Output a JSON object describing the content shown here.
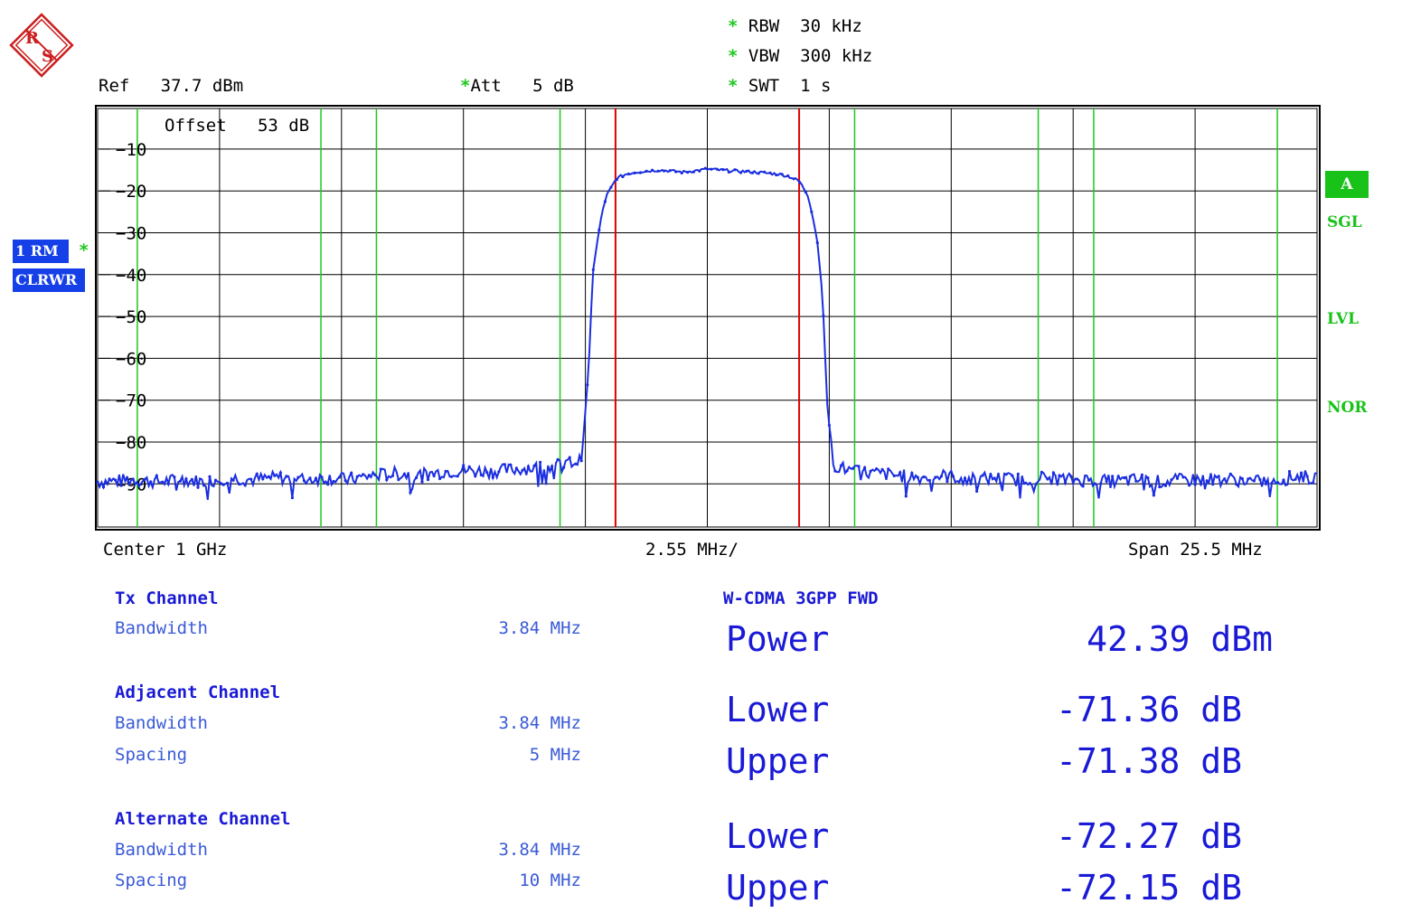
{
  "header": {
    "rbw_label": "RBW",
    "rbw_value": "30 kHz",
    "vbw_label": "VBW",
    "vbw_value": "300 kHz",
    "swt_label": "SWT",
    "swt_value": "1 s",
    "ref_label": "Ref",
    "ref_value": "37.7 dBm",
    "att_label": "Att",
    "att_value": "5 dB",
    "offset_label": "Offset",
    "offset_value": "53 dB",
    "star": "*"
  },
  "side_left": {
    "trace_tag": "1 RM",
    "mode_tag": "CLRWR"
  },
  "side_right": {
    "trace_box": "A",
    "sgl": "SGL",
    "lvl": "LVL",
    "nor": "NOR"
  },
  "footer_axis": {
    "center": "Center 1 GHz",
    "div": "2.55 MHz/",
    "span": "Span 25.5 MHz"
  },
  "tx_channel": {
    "title": "Tx Channel",
    "bw_label": "Bandwidth",
    "bw_value": "3.84 MHz"
  },
  "adjacent_channel": {
    "title": "Adjacent Channel",
    "bw_label": "Bandwidth",
    "bw_value": "3.84 MHz",
    "sp_label": "Spacing",
    "sp_value": "5 MHz"
  },
  "alternate_channel": {
    "title": "Alternate Channel",
    "bw_label": "Bandwidth",
    "bw_value": "3.84 MHz",
    "sp_label": "Spacing",
    "sp_value": "10 MHz"
  },
  "results": {
    "standard": "W-CDMA 3GPP FWD",
    "power_label": "Power",
    "power_value": "42.39 dBm",
    "adj_lower_label": "Lower",
    "adj_lower_value": "-71.36 dB",
    "adj_upper_label": "Upper",
    "adj_upper_value": "-71.38 dB",
    "alt_lower_label": "Lower",
    "alt_lower_value": "-72.27 dB",
    "alt_upper_label": "Upper",
    "alt_upper_value": "-72.15 dB"
  },
  "colors": {
    "trace": "#1a2ee0",
    "grid": "#000000",
    "green_lines": "#1ec81e",
    "red_lines": "#e00000",
    "text_blue": "#1a1ad6",
    "logo": "#cc1f1f"
  },
  "chart_data": {
    "type": "line",
    "xlabel": "",
    "ylabel": "",
    "x_unit": "MHz offset from center",
    "xlim": [
      -12.75,
      12.75
    ],
    "ylim": [
      -100.3,
      -0.3
    ],
    "y_ticks": [
      -10,
      -20,
      -30,
      -40,
      -50,
      -60,
      -70,
      -80,
      -90
    ],
    "x_grid_divisions": 10,
    "grid": true,
    "tx_channel_edges_mhz": [
      -1.92,
      1.92
    ],
    "adjacent_channel_edges_mhz": [
      -6.92,
      -3.08,
      3.08,
      6.92
    ],
    "alternate_channel_edges_mhz": [
      -11.92,
      -8.08,
      8.08,
      11.92
    ],
    "series": [
      {
        "x": [
          -12.75,
          -12.0,
          -11.5,
          -11.0,
          -10.5,
          -10.0,
          -9.5,
          -9.0,
          -8.5,
          -8.0,
          -7.5,
          -7.0,
          -6.5,
          -6.0,
          -5.5,
          -5.0,
          -4.5,
          -4.0,
          -3.5,
          -3.0,
          -2.9,
          -2.65,
          -2.6,
          -2.5,
          -2.45,
          -2.4,
          -2.3,
          -2.2,
          -2.1,
          -2.0,
          -1.9,
          -1.7,
          -1.5,
          -1.0,
          -0.5,
          0.0,
          0.5,
          1.0,
          1.5,
          1.7,
          1.9,
          2.0,
          2.1,
          2.2,
          2.3,
          2.4,
          2.45,
          2.5,
          2.6,
          2.65,
          2.9,
          3.0,
          3.5,
          4.0,
          4.5,
          5.0,
          5.5,
          6.0,
          6.5,
          7.0,
          7.5,
          8.0,
          8.5,
          9.0,
          9.5,
          10.0,
          10.5,
          11.0,
          11.5,
          12.0,
          12.4,
          12.75
        ],
        "y": [
          -89.5,
          -89.0,
          -89.5,
          -89.0,
          -89.5,
          -88.5,
          -89.0,
          -88.5,
          -89.0,
          -88.5,
          -89.0,
          -88.0,
          -87.5,
          -88.0,
          -87.0,
          -86.8,
          -87.0,
          -86.5,
          -86.0,
          -85.5,
          -85.0,
          -84.5,
          -80.0,
          -65.0,
          -55.0,
          -40.0,
          -32.0,
          -25.0,
          -21.0,
          -19.0,
          -17.0,
          -16.0,
          -15.5,
          -15.0,
          -15.5,
          -14.8,
          -15.2,
          -15.5,
          -16.0,
          -16.5,
          -17.5,
          -19.0,
          -21.0,
          -26.0,
          -32.0,
          -44.0,
          -55.0,
          -70.0,
          -82.0,
          -85.5,
          -86.5,
          -87.0,
          -87.5,
          -88.0,
          -88.5,
          -88.0,
          -89.0,
          -88.5,
          -89.0,
          -88.5,
          -89.0,
          -89.0,
          -89.5,
          -89.0,
          -89.5,
          -89.0,
          -88.8,
          -89.0,
          -89.5,
          -89.0,
          -88.0,
          -89.0
        ]
      }
    ]
  }
}
